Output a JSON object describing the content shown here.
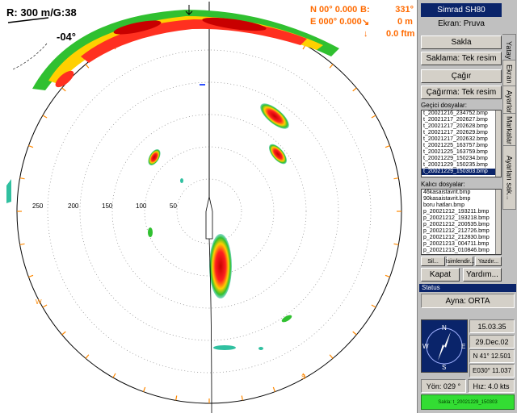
{
  "overlay": {
    "range": "R:  300 m/G:38",
    "tilt": "-04°",
    "nav_n": "N  00° 0.000",
    "nav_e": "E 000° 0.000",
    "bearing": "B:",
    "bearing_value": "331°",
    "distance": "0 m",
    "depth": "0.0 ftm"
  },
  "scale_labels": [
    "250",
    "200",
    "150",
    "100",
    "50"
  ],
  "compass_letters": {
    "n": "N",
    "e": "E",
    "s": "S",
    "w": "W"
  },
  "panel": {
    "title": "Simrad SH80",
    "ekran": "Ekran: Pruva",
    "buttons": {
      "sakla": "Sakla",
      "saklama": "Saklama: Tek resim",
      "cagir": "Çağır",
      "cagirma": "Çağırma: Tek resim",
      "sil": "Sil...",
      "isimlendir": "İsimlendir...",
      "yazdir": "Yazdır...",
      "kapat": "Kapat",
      "yardim": "Yardım..."
    },
    "tabs": [
      "Yatay",
      "Ekran",
      "Ayarlar",
      "Markalar",
      "Ayarları sak..."
    ],
    "temp_label": "Geçici dosyalar:",
    "temp_files": [
      "t_20021216_234752.bmp",
      "t_20021217_202627.bmp",
      "t_20021217_202628.bmp",
      "t_20021217_202629.bmp",
      "t_20021217_202632.bmp",
      "t_20021225_163757.bmp",
      "t_20021225_163759.bmp",
      "t_20021229_150234.bmp",
      "t_20021229_150235.bmp",
      "t_20021229_150303.bmp"
    ],
    "perm_label": "Kalıcı dosyalar:",
    "perm_files": [
      "46kasaistavrit.bmp",
      "90kasaistavrit.bmp",
      "boru hatları.bmp",
      "p_20021212_193211.bmp",
      "p_20021212_193218.bmp",
      "p_20021212_200535.bmp",
      "p_20021212_212726.bmp",
      "p_20021212_212830.bmp",
      "p_20021213_004711.bmp",
      "p_20021213_010846.bmp"
    ],
    "status": {
      "header": "Status",
      "ayna": "Ayna: ORTA",
      "time": "15.03.35",
      "date": "29.Dec.02",
      "lat": "N  41° 12.501",
      "lon": "E030° 11.037",
      "heading": "Yön: 029 °",
      "speed": "Hız: 4.0 kts",
      "saved": "Sakla: t_20021229_150303"
    }
  }
}
